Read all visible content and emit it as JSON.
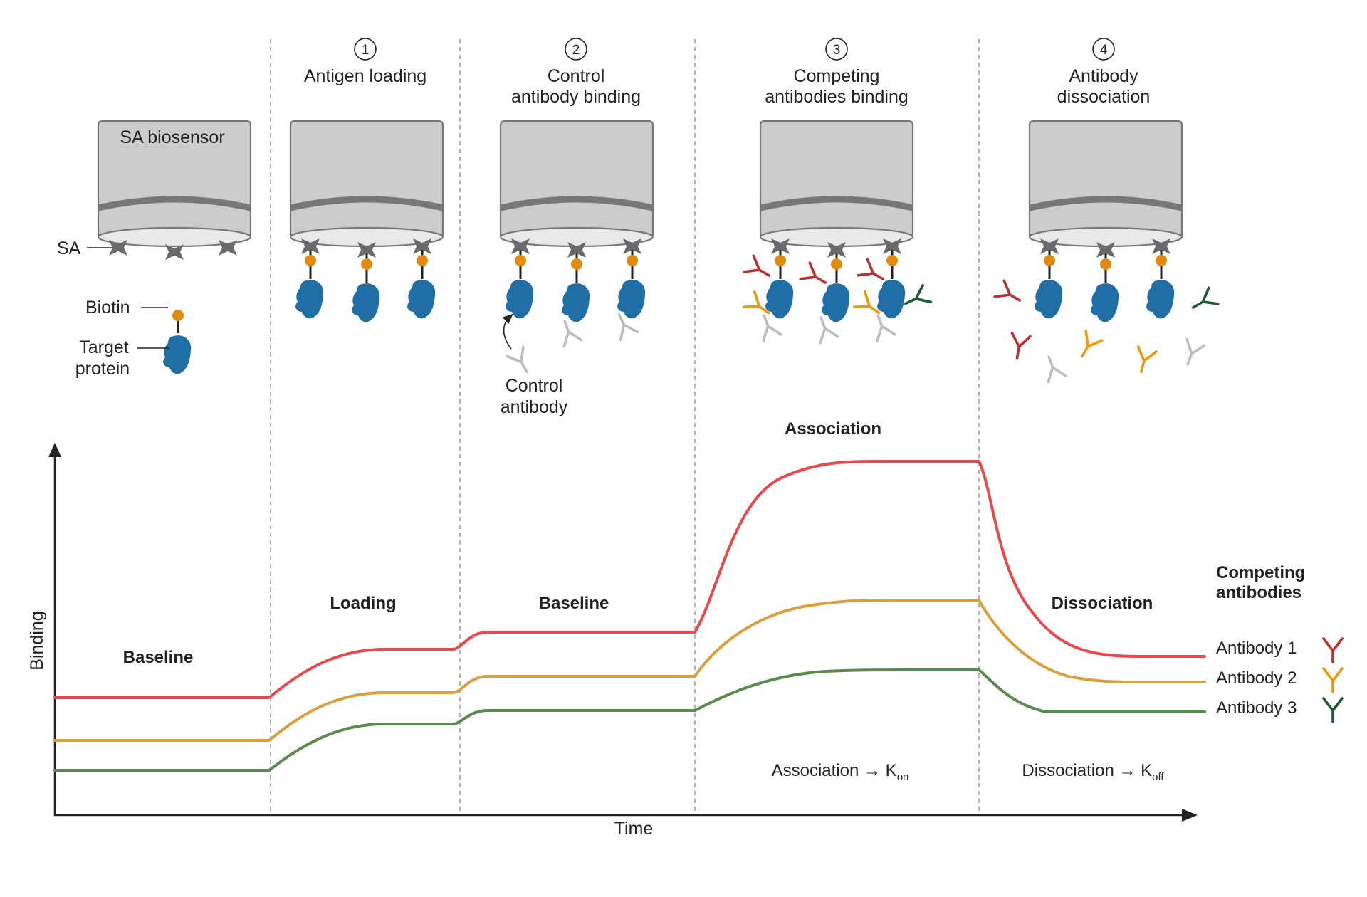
{
  "steps": [
    {
      "number": "1",
      "title_lines": [
        "Antigen loading"
      ]
    },
    {
      "number": "2",
      "title_lines": [
        "Control",
        "antibody binding"
      ]
    },
    {
      "number": "3",
      "title_lines": [
        "Competing",
        "antibodies binding"
      ]
    },
    {
      "number": "4",
      "title_lines": [
        "Antibody",
        "dissociation"
      ]
    }
  ],
  "labels": {
    "biosensor": "SA biosensor",
    "sa": "SA",
    "biotin": "Biotin",
    "target_protein_lines": [
      "Target",
      "protein"
    ],
    "control_antibody_lines": [
      "Control",
      "antibody"
    ]
  },
  "phases": [
    {
      "label": "Baseline"
    },
    {
      "label": "Loading"
    },
    {
      "label": "Baseline"
    },
    {
      "label": "Association"
    },
    {
      "label": "Dissociation"
    }
  ],
  "axes": {
    "x": "Time",
    "y": "Binding"
  },
  "legend": {
    "title_lines": [
      "Competing",
      "antibodies"
    ],
    "items": [
      {
        "name": "Antibody 1",
        "color": "#e8494d",
        "icon_color": "#b93232"
      },
      {
        "name": "Antibody 2",
        "color": "#d9a040",
        "icon_color": "#e89a10"
      },
      {
        "name": "Antibody 3",
        "color": "#5b8a4e",
        "icon_color": "#1e5c35"
      }
    ]
  },
  "annotations": {
    "association": {
      "text": "Association → K",
      "sub": "on"
    },
    "dissociation": {
      "text": "Dissociation → K",
      "sub": "off"
    }
  },
  "colors": {
    "sensor_body": "#cccccc",
    "sensor_outline": "#777777",
    "protein": "#1f6fa6",
    "biotin": "#e08a10",
    "sa_cross": "#6a6a6a",
    "control_antibody": "#bdbdbd",
    "guide_line": "#9a9a9a"
  }
}
